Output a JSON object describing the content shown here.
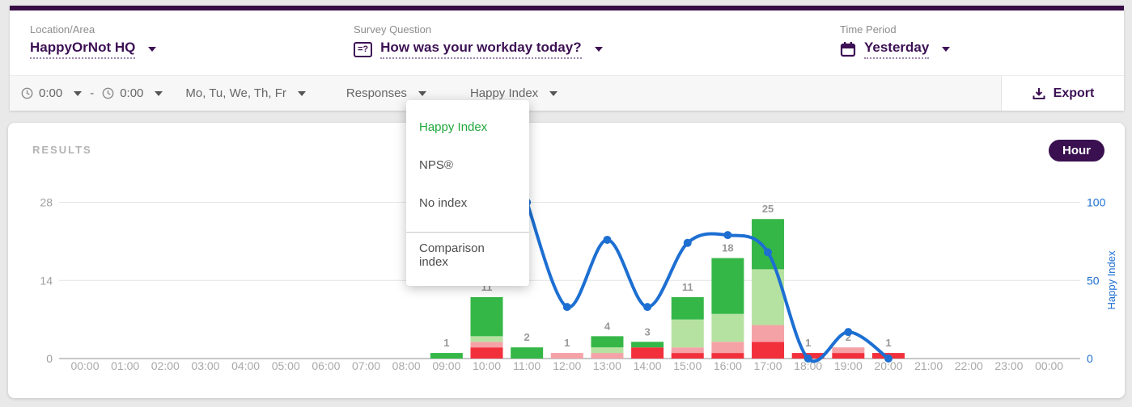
{
  "header": {
    "fields": [
      {
        "label": "Location/Area",
        "value": "HappyOrNot HQ"
      },
      {
        "label": "Survey Question",
        "value": "How was your workday today?"
      },
      {
        "label": "Time Period",
        "value": "Yesterday"
      }
    ],
    "survey_icon_text": "=?"
  },
  "filter_bar": {
    "time_from": "0:00",
    "time_to": "0:00",
    "separator": "-",
    "weekdays": "Mo, Tu, We, Th, Fr",
    "responses_label": "Responses",
    "index_label": "Happy Index",
    "export_label": "Export"
  },
  "dropdown_menu": {
    "items": [
      {
        "label": "Happy Index",
        "selected": true,
        "divider_before": false
      },
      {
        "label": "NPS®",
        "selected": false,
        "divider_before": false
      },
      {
        "label": "No index",
        "selected": false,
        "divider_before": false
      },
      {
        "label": "Comparison index",
        "selected": false,
        "divider_before": true
      }
    ]
  },
  "results": {
    "title": "RESULTS",
    "badge": "Hour"
  },
  "chart_data": {
    "type": "bar",
    "subtype": "stacked bars with smoothed line overlay",
    "title": "RESULTS",
    "x_categories": [
      "00:00",
      "01:00",
      "02:00",
      "03:00",
      "04:00",
      "05:00",
      "06:00",
      "07:00",
      "08:00",
      "09:00",
      "10:00",
      "11:00",
      "12:00",
      "13:00",
      "14:00",
      "15:00",
      "16:00",
      "17:00",
      "18:00",
      "19:00",
      "20:00",
      "21:00",
      "22:00",
      "23:00",
      "00:00"
    ],
    "left_axis": {
      "ticks": [
        0,
        14,
        28
      ],
      "max": 28,
      "label": ""
    },
    "right_axis": {
      "ticks": [
        0,
        50,
        100
      ],
      "max": 100,
      "label": "Happy Index"
    },
    "grid": "horizontal gridlines at 14 and 28",
    "colors": {
      "green": "#35b747",
      "light_green": "#b6e2a1",
      "pink": "#f5a2a7",
      "red": "#f2303c",
      "line": "#1d6fd2",
      "axis_gray": "#9f9f9f",
      "tick_gray": "#a9a9a9",
      "bar_label_gray": "#999999",
      "gridline": "#e4e4e4",
      "baseline": "#c7c7c7"
    },
    "stack_order_bottom_to_top": [
      "red",
      "pink",
      "light_green",
      "green"
    ],
    "bars": [
      {
        "hour_index": 9,
        "x": "09:00",
        "red": 0,
        "pink": 0,
        "light_green": 0,
        "green": 1,
        "total": 1
      },
      {
        "hour_index": 10,
        "x": "10:00",
        "red": 2,
        "pink": 1,
        "light_green": 1,
        "green": 7,
        "total": 11
      },
      {
        "hour_index": 11,
        "x": "11:00",
        "red": 0,
        "pink": 0,
        "light_green": 0,
        "green": 2,
        "total": 2
      },
      {
        "hour_index": 12,
        "x": "12:00",
        "red": 0,
        "pink": 1,
        "light_green": 0,
        "green": 0,
        "total": 1
      },
      {
        "hour_index": 13,
        "x": "13:00",
        "red": 0,
        "pink": 1,
        "light_green": 1,
        "green": 2,
        "total": 4
      },
      {
        "hour_index": 14,
        "x": "14:00",
        "red": 2,
        "pink": 0,
        "light_green": 0,
        "green": 1,
        "total": 3
      },
      {
        "hour_index": 15,
        "x": "15:00",
        "red": 1,
        "pink": 1,
        "light_green": 5,
        "green": 4,
        "total": 11
      },
      {
        "hour_index": 16,
        "x": "16:00",
        "red": 1,
        "pink": 2,
        "light_green": 5,
        "green": 10,
        "total": 18
      },
      {
        "hour_index": 17,
        "x": "17:00",
        "red": 3,
        "pink": 3,
        "light_green": 10,
        "green": 9,
        "total": 25
      },
      {
        "hour_index": 18,
        "x": "18:00",
        "red": 1,
        "pink": 0,
        "light_green": 0,
        "green": 0,
        "total": 1
      },
      {
        "hour_index": 19,
        "x": "19:00",
        "red": 1,
        "pink": 1,
        "light_green": 0,
        "green": 0,
        "total": 2
      },
      {
        "hour_index": 20,
        "x": "20:00",
        "red": 1,
        "pink": 0,
        "light_green": 0,
        "green": 0,
        "total": 1
      }
    ],
    "line": {
      "name": "Happy Index",
      "points": [
        {
          "hour_index": 11,
          "x": "11:00",
          "value": 100
        },
        {
          "hour_index": 12,
          "x": "12:00",
          "value": 33
        },
        {
          "hour_index": 13,
          "x": "13:00",
          "value": 76
        },
        {
          "hour_index": 14,
          "x": "14:00",
          "value": 33
        },
        {
          "hour_index": 15,
          "x": "15:00",
          "value": 74
        },
        {
          "hour_index": 16,
          "x": "16:00",
          "value": 79
        },
        {
          "hour_index": 17,
          "x": "17:00",
          "value": 68
        },
        {
          "hour_index": 18,
          "x": "18:00",
          "value": 0
        },
        {
          "hour_index": 19,
          "x": "19:00",
          "value": 17
        },
        {
          "hour_index": 20,
          "x": "20:00",
          "value": 0
        }
      ]
    }
  }
}
